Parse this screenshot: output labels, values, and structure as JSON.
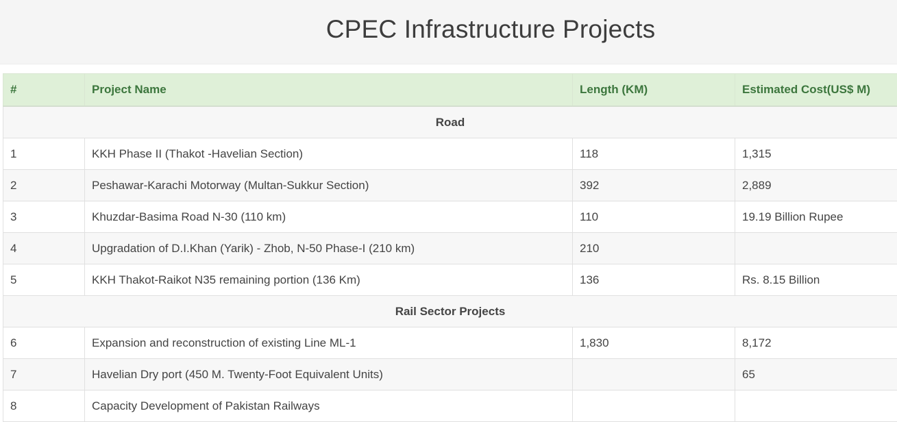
{
  "header": {
    "title": "CPEC Infrastructure Projects"
  },
  "table": {
    "columns": [
      "#",
      "Project Name",
      "Length (KM)",
      "Estimated Cost(US$ M)"
    ],
    "sections": [
      {
        "name": "Road",
        "rows": [
          {
            "num": "1",
            "name": "KKH Phase II (Thakot -Havelian Section)",
            "length": "118",
            "cost": "1,315"
          },
          {
            "num": "2",
            "name": "Peshawar-Karachi Motorway (Multan-Sukkur Section)",
            "length": "392",
            "cost": "2,889"
          },
          {
            "num": "3",
            "name": "Khuzdar-Basima Road N-30 (110 km)",
            "length": "110",
            "cost": "19.19 Billion Rupee"
          },
          {
            "num": "4",
            "name": "Upgradation of D.I.Khan (Yarik) - Zhob, N-50 Phase-I (210 km)",
            "length": "210",
            "cost": ""
          },
          {
            "num": "5",
            "name": "KKH Thakot-Raikot N35 remaining portion (136 Km)",
            "length": "136",
            "cost": "Rs. 8.15 Billion"
          }
        ]
      },
      {
        "name": "Rail Sector Projects",
        "rows": [
          {
            "num": "6",
            "name": "Expansion and reconstruction of existing Line ML-1",
            "length": "1,830",
            "cost": "8,172"
          },
          {
            "num": "7",
            "name": "Havelian Dry port (450 M. Twenty-Foot Equivalent Units)",
            "length": "",
            "cost": "65"
          },
          {
            "num": "8",
            "name": "Capacity Development of Pakistan Railways",
            "length": "",
            "cost": ""
          }
        ]
      }
    ]
  }
}
